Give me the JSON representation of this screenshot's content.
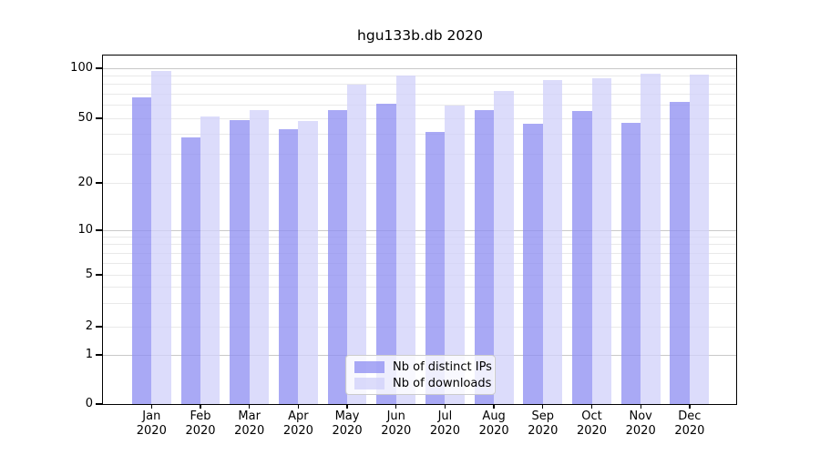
{
  "title": "hgu133b.db 2020",
  "chart_data": {
    "type": "bar",
    "title": "hgu133b.db 2020",
    "categories": [
      "Jan",
      "Feb",
      "Mar",
      "Apr",
      "May",
      "Jun",
      "Jul",
      "Aug",
      "Sep",
      "Oct",
      "Nov",
      "Dec"
    ],
    "category_year": "2020",
    "series": [
      {
        "name": "Nb of distinct IPs",
        "color": "#a9a9f5",
        "fill": "rgba(140,140,242,0.75)",
        "values": [
          67,
          38,
          49,
          43,
          56,
          61,
          41,
          56,
          46,
          55,
          47,
          63
        ]
      },
      {
        "name": "Nb of downloads",
        "color": "#dcdcfa",
        "fill": "rgba(208,208,250,0.75)",
        "values": [
          96,
          51,
          56,
          48,
          80,
          90,
          60,
          73,
          85,
          87,
          93,
          92
        ]
      }
    ],
    "yscale": "log-like",
    "yticks": {
      "values": [
        100,
        50,
        20,
        10,
        5,
        2,
        1,
        0
      ],
      "labels": [
        "100",
        "50",
        "20",
        "10",
        "5",
        "2",
        "1",
        "0"
      ]
    },
    "ylim": [
      0,
      115
    ],
    "grid": "horizontal",
    "grid_minor_values": [
      90,
      80,
      70,
      60,
      50,
      40,
      30,
      20,
      9,
      8,
      7,
      6,
      5,
      4,
      3,
      2
    ],
    "grid_major_values": [
      100,
      10,
      1
    ],
    "legend_position": "lower center",
    "colors": {
      "grid_minor": "#e9e9e9",
      "grid_major": "#c9c9c9",
      "spine": "#000000",
      "background": "#ffffff"
    }
  },
  "legend": {
    "item1": "Nb of distinct IPs",
    "item2": "Nb of downloads"
  }
}
